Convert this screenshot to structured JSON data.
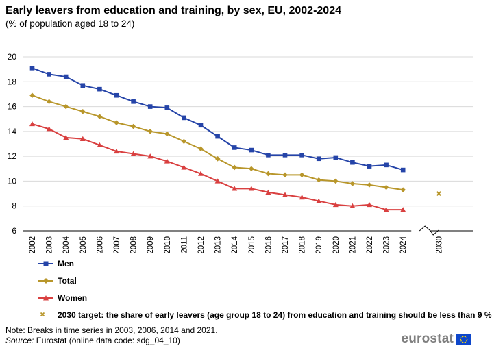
{
  "chart_data": {
    "type": "line",
    "title": "Early leavers from education and training, by sex, EU, 2002-2024",
    "subtitle": "(% of population  aged  18 to 24)",
    "categories": [
      "2002",
      "2003",
      "2004",
      "2005",
      "2006",
      "2007",
      "2008",
      "2009",
      "2010",
      "2011",
      "2012",
      "2013",
      "2014",
      "2015",
      "2016",
      "2017",
      "2018",
      "2019",
      "2020",
      "2021",
      "2022",
      "2023",
      "2024"
    ],
    "extra_category": "2030",
    "ylim": [
      6,
      20
    ],
    "yticks": [
      6,
      8,
      10,
      12,
      14,
      16,
      18,
      20
    ],
    "grid": true,
    "series": [
      {
        "name": "Men",
        "color": "#2544A8",
        "marker": "square",
        "values": [
          19.1,
          18.6,
          18.4,
          17.7,
          17.4,
          16.9,
          16.4,
          16.0,
          15.9,
          15.1,
          14.5,
          13.6,
          12.7,
          12.5,
          12.1,
          12.1,
          12.1,
          11.8,
          11.9,
          11.5,
          11.2,
          11.3,
          10.9
        ]
      },
      {
        "name": "Total",
        "color": "#B8962A",
        "marker": "diamond",
        "values": [
          16.9,
          16.4,
          16.0,
          15.6,
          15.2,
          14.7,
          14.4,
          14.0,
          13.8,
          13.2,
          12.6,
          11.8,
          11.1,
          11.0,
          10.6,
          10.5,
          10.5,
          10.1,
          10.0,
          9.8,
          9.7,
          9.5,
          9.3
        ]
      },
      {
        "name": "Women",
        "color": "#D94040",
        "marker": "triangle",
        "values": [
          14.6,
          14.2,
          13.5,
          13.4,
          12.9,
          12.4,
          12.2,
          12.0,
          11.6,
          11.1,
          10.6,
          10.0,
          9.4,
          9.4,
          9.1,
          8.9,
          8.7,
          8.4,
          8.1,
          8.0,
          8.1,
          7.7,
          7.7
        ]
      }
    ],
    "target": {
      "category": "2030",
      "value": 9,
      "color": "#B8962A",
      "label": "2030 target: the share of early leavers (age group 18 to 24) from education and training should be less than 9 %"
    }
  },
  "footer": {
    "note": "Note: Breaks in time series in 2003, 2006, 2014 and 2021.",
    "source_label": "Source:",
    "source_text": " Eurostat (online data code: sdg_04_10)"
  },
  "logo": {
    "text": "eurostat",
    "flag_color": "#0E47CB",
    "star_color": "#FFDD00"
  }
}
